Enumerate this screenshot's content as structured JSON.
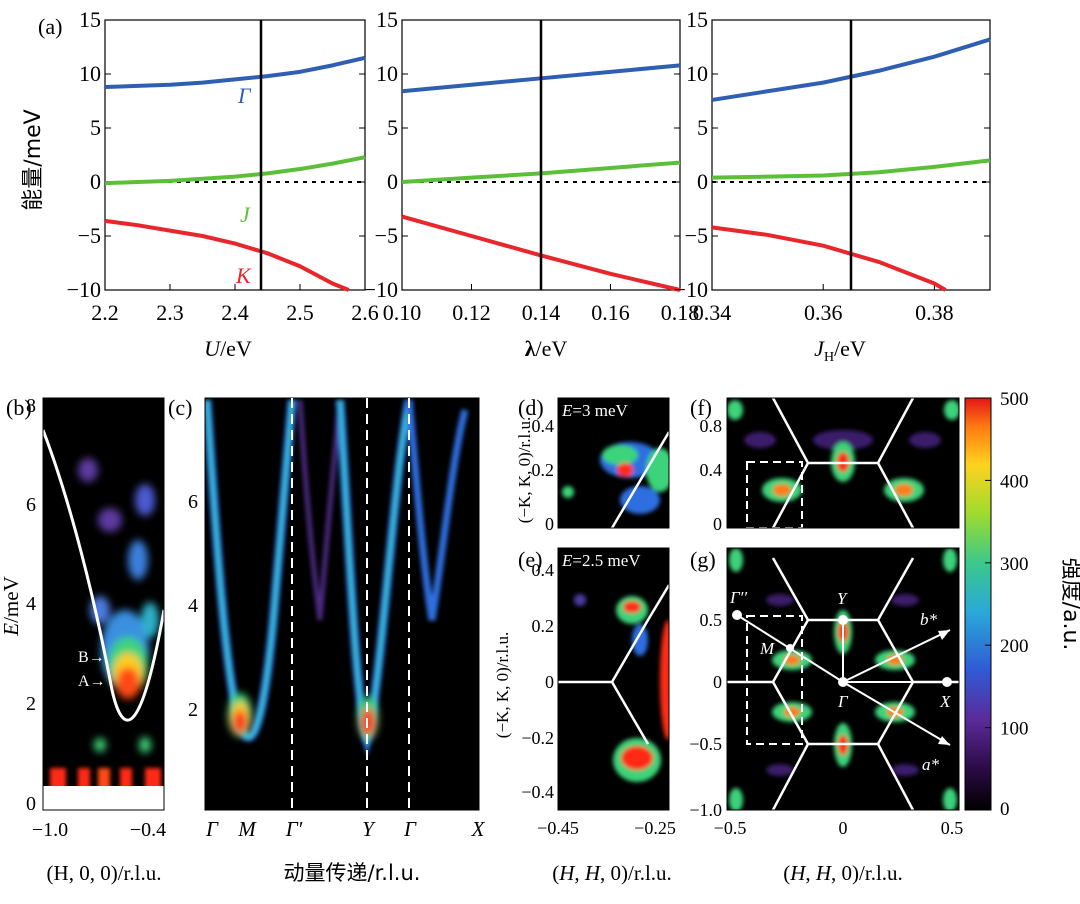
{
  "chart_data": [
    {
      "id": "a1",
      "type": "line",
      "panel_label": "(a)",
      "xlabel_var": "U",
      "xlabel_unit": "/eV",
      "ylabel": "能量/meV",
      "xlim": [
        2.2,
        2.6
      ],
      "ylim": [
        -10,
        15
      ],
      "xticks": [
        "2.2",
        "2.3",
        "2.4",
        "2.5",
        "2.6"
      ],
      "yticks": [
        "−10",
        "−5",
        "0",
        "5",
        "10",
        "15"
      ],
      "marker_x": 2.44,
      "series": [
        {
          "name": "Γ",
          "color": "#2f5fb3",
          "x": [
            2.2,
            2.25,
            2.3,
            2.35,
            2.4,
            2.45,
            2.5,
            2.55,
            2.6
          ],
          "y": [
            8.8,
            8.9,
            9.0,
            9.2,
            9.5,
            9.8,
            10.2,
            10.8,
            11.5
          ]
        },
        {
          "name": "J",
          "color": "#5cbf3a",
          "x": [
            2.2,
            2.25,
            2.3,
            2.35,
            2.4,
            2.45,
            2.5,
            2.55,
            2.6
          ],
          "y": [
            -0.1,
            0.0,
            0.1,
            0.3,
            0.5,
            0.8,
            1.2,
            1.7,
            2.3
          ]
        },
        {
          "name": "K",
          "color": "#e8262b",
          "x": [
            2.2,
            2.25,
            2.3,
            2.35,
            2.4,
            2.45,
            2.5,
            2.55,
            2.575
          ],
          "y": [
            -3.6,
            -4.0,
            -4.5,
            -5.0,
            -5.7,
            -6.6,
            -7.8,
            -9.4,
            -10.0
          ]
        }
      ],
      "annotations": [
        "Γ",
        "J",
        "K"
      ]
    },
    {
      "id": "a2",
      "type": "line",
      "xlabel_var": "λ",
      "xlabel_unit": "/eV",
      "xlim": [
        0.1,
        0.18
      ],
      "ylim": [
        -10,
        15
      ],
      "xticks": [
        "0.10",
        "0.12",
        "0.14",
        "0.16",
        "0.18"
      ],
      "yticks": [
        "−10",
        "−5",
        "0",
        "5",
        "10",
        "15"
      ],
      "marker_x": 0.14,
      "series": [
        {
          "name": "Γ",
          "color": "#2f5fb3",
          "x": [
            0.1,
            0.12,
            0.14,
            0.16,
            0.18
          ],
          "y": [
            8.4,
            9.0,
            9.6,
            10.2,
            10.8
          ]
        },
        {
          "name": "J",
          "color": "#5cbf3a",
          "x": [
            0.1,
            0.12,
            0.14,
            0.16,
            0.18
          ],
          "y": [
            0.0,
            0.4,
            0.8,
            1.3,
            1.8
          ]
        },
        {
          "name": "K",
          "color": "#e8262b",
          "x": [
            0.1,
            0.12,
            0.14,
            0.16,
            0.18
          ],
          "y": [
            -3.2,
            -5.0,
            -6.8,
            -8.5,
            -10.0
          ]
        }
      ]
    },
    {
      "id": "a3",
      "type": "line",
      "xlabel_var": "J",
      "xlabel_sub": "H",
      "xlabel_unit": "/eV",
      "xlim": [
        0.34,
        0.39
      ],
      "ylim": [
        -10,
        15
      ],
      "xticks": [
        "0.34",
        "0.36",
        "0.38"
      ],
      "xtick_vals": [
        0.34,
        0.36,
        0.38
      ],
      "yticks": [
        "−10",
        "−5",
        "0",
        "5",
        "10",
        "15"
      ],
      "marker_x": 0.365,
      "series": [
        {
          "name": "Γ",
          "color": "#2f5fb3",
          "x": [
            0.34,
            0.35,
            0.36,
            0.37,
            0.38,
            0.39
          ],
          "y": [
            7.6,
            8.4,
            9.2,
            10.3,
            11.6,
            13.2
          ]
        },
        {
          "name": "J",
          "color": "#5cbf3a",
          "x": [
            0.34,
            0.35,
            0.36,
            0.37,
            0.38,
            0.39
          ],
          "y": [
            0.4,
            0.5,
            0.6,
            0.9,
            1.4,
            2.0
          ]
        },
        {
          "name": "K",
          "color": "#e8262b",
          "x": [
            0.34,
            0.35,
            0.36,
            0.37,
            0.38,
            0.382
          ],
          "y": [
            -4.2,
            -4.9,
            -5.9,
            -7.4,
            -9.4,
            -10.0
          ]
        }
      ]
    },
    {
      "id": "b",
      "type": "heatmap",
      "panel_label": "(b)",
      "xlabel": "(H, 0, 0)/r.l.u.",
      "ylabel": "E/meV",
      "xticks": [
        "−1.0",
        "−0.4"
      ],
      "yticks": [
        "0",
        "2",
        "4",
        "6",
        "8"
      ],
      "ylim": [
        0,
        8
      ],
      "labels": [
        "B→",
        "A→"
      ]
    },
    {
      "id": "c",
      "type": "heatmap",
      "panel_label": "(c)",
      "xlabel": "动量传递/r.l.u.",
      "xticks": [
        "Γ",
        "M",
        "Γ′",
        "Y",
        "Γ",
        "X"
      ],
      "yticks": [
        "2",
        "4",
        "6"
      ],
      "ylim": [
        0.5,
        8
      ]
    },
    {
      "id": "d",
      "type": "heatmap",
      "panel_label": "(d)",
      "energy_label": "E=3 meV",
      "ylabel": "(−K, K, 0)/r.l.u.",
      "yticks": [
        "0",
        "0.2",
        "0.4"
      ]
    },
    {
      "id": "e",
      "type": "heatmap",
      "panel_label": "(e)",
      "energy_label": "E=2.5 meV",
      "xlabel": "(H, H, 0)/r.l.u.",
      "ylabel": "(−K, K, 0)/r.l.u.",
      "xticks": [
        "−0.45",
        "−0.25"
      ],
      "yticks": [
        "−0.4",
        "−0.2",
        "0",
        "0.2",
        "0.4"
      ]
    },
    {
      "id": "f",
      "type": "heatmap",
      "panel_label": "(f)",
      "yticks": [
        "0",
        "0.4",
        "0.8"
      ]
    },
    {
      "id": "g",
      "type": "heatmap",
      "panel_label": "(g)",
      "xlabel": "(H, H, 0)/r.l.u.",
      "xticks": [
        "−0.5",
        "0",
        "0.5"
      ],
      "yticks": [
        "−1.0",
        "−0.5",
        "0",
        "0.5"
      ],
      "points": [
        "Γ′′",
        "M",
        "Y",
        "Γ",
        "X",
        "b*",
        "a*"
      ]
    },
    {
      "id": "colorbar",
      "type": "heatmap",
      "label": "强度/a.u.",
      "ticks": [
        "0",
        "100",
        "200",
        "300",
        "400",
        "500"
      ],
      "range": [
        0,
        500
      ]
    }
  ]
}
